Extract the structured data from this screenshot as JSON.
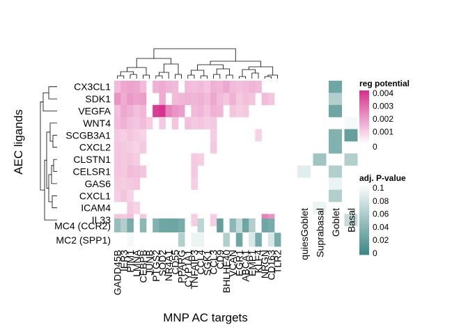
{
  "chart_data": {
    "type": "heatmap",
    "title": "",
    "xlabel": "MNP AC targets",
    "ylabel": "AEC ligands",
    "ligands": [
      "CX3CL1",
      "SDK1",
      "VEGFA",
      "WNT4",
      "SCGB3A1",
      "CXCL2",
      "CLSTN1",
      "CELSR1",
      "GAS6",
      "CXCL1",
      "ICAM4",
      "IL33"
    ],
    "targets": [
      "GADD45B",
      "IER3",
      "PIM1",
      "LMNA",
      "CEBPB",
      "JUNB",
      "PTGS2",
      "SOD2",
      "NR4A1",
      "CD55",
      "PPARG",
      "CYP1A1",
      "TNFAIP3",
      "CCL4",
      "SGK1",
      "CCL3",
      "CD9",
      "BHLHE40",
      "VCAN",
      "EGR1",
      "ABCA1",
      "EMP1",
      "KLF4",
      "NRGN",
      "CD163",
      "TLR2"
    ],
    "regulatory_potential": [
      [
        0.0014,
        0.0018,
        0.0019,
        0.0018,
        0.0014,
        0.0,
        0.0016,
        0.0017,
        0.0015,
        0.0014,
        0.0,
        0.0014,
        0.0013,
        0.0014,
        0.0012,
        0.0016,
        0.0015,
        0.0018,
        0.0014,
        0.0013,
        0.0014,
        0.0015,
        0.0014,
        0.0,
        0.0,
        0.0
      ],
      [
        0.0022,
        0.0017,
        0.0021,
        0.0019,
        0.002,
        0.0,
        0.0,
        0.0017,
        0.0,
        0.0014,
        0.0015,
        0.0016,
        0.0015,
        0.0016,
        0.0014,
        0.0018,
        0.0014,
        0.0012,
        0.0016,
        0.0011,
        0.0013,
        0.0012,
        0.0,
        0.0014,
        0.0012,
        0.0
      ],
      [
        0.0013,
        0.0018,
        0.0016,
        0.0013,
        0.0015,
        0.0,
        0.004,
        0.0042,
        0.0026,
        0.0022,
        0.002,
        0.0,
        0.0014,
        0.0015,
        0.0012,
        0.0016,
        0.0015,
        0.0,
        0.0012,
        0.001,
        0.0011,
        0.0,
        0.0,
        0.0,
        0.0,
        0.0
      ],
      [
        0.0014,
        0.0016,
        0.0013,
        0.0012,
        0.0014,
        0.001,
        0.0,
        0.0011,
        0.0,
        0.0012,
        0.0,
        0.0013,
        0.0011,
        0.0012,
        0.001,
        0.0011,
        0.0,
        0.0,
        0.0,
        0.0,
        0.0,
        0.0,
        0.0,
        0.0,
        0.0,
        0.0
      ],
      [
        0.0011,
        0.001,
        0.0012,
        0.001,
        0.0009,
        0.0,
        0.0,
        0.0,
        0.0,
        0.0,
        0.0,
        0.0,
        0.0,
        0.0,
        0.0,
        0.001,
        0.0,
        0.0,
        0.0,
        0.0,
        0.0,
        0.0,
        0.0009,
        0.0,
        0.0,
        0.0
      ],
      [
        0.0012,
        0.0011,
        0.001,
        0.0009,
        0.0011,
        0.0,
        0.0,
        0.0,
        0.0,
        0.0,
        0.0,
        0.0,
        0.0,
        0.0,
        0.0,
        0.0011,
        0.0,
        0.0,
        0.0,
        0.0,
        0.0,
        0.0,
        0.0,
        0.0,
        0.0,
        0.0
      ],
      [
        0.0012,
        0.0011,
        0.0012,
        0.001,
        0.0,
        0.0,
        0.0,
        0.0,
        0.0,
        0.0,
        0.0,
        0.0,
        0.0011,
        0.001,
        0.0,
        0.0,
        0.0,
        0.0,
        0.0,
        0.0,
        0.0,
        0.0,
        0.0,
        0.0,
        0.0,
        0.0
      ],
      [
        0.0012,
        0.0011,
        0.0014,
        0.0013,
        0.0012,
        0.0,
        0.0,
        0.0,
        0.0,
        0.0,
        0.0,
        0.0,
        0.0011,
        0.0,
        0.0,
        0.0,
        0.0,
        0.0,
        0.0,
        0.0,
        0.0,
        0.0,
        0.0,
        0.0,
        0.0,
        0.0
      ],
      [
        0.0011,
        0.001,
        0.0011,
        0.0012,
        0.0,
        0.0,
        0.0,
        0.0,
        0.0,
        0.0,
        0.0,
        0.0,
        0.001,
        0.0,
        0.0,
        0.0,
        0.0,
        0.0,
        0.0,
        0.0,
        0.0,
        0.0,
        0.0,
        0.0,
        0.0,
        0.0
      ],
      [
        0.001,
        0.0012,
        0.0009,
        0.0,
        0.0,
        0.0,
        0.0,
        0.0,
        0.0,
        0.0,
        0.0,
        0.0,
        0.0,
        0.0,
        0.0,
        0.0,
        0.0,
        0.0,
        0.0,
        0.0,
        0.0,
        0.0,
        0.0,
        0.0,
        0.0,
        0.0
      ],
      [
        0.0,
        0.0,
        0.0011,
        0.0009,
        0.0,
        0.0,
        0.0,
        0.0,
        0.0,
        0.0,
        0.0,
        0.0,
        0.0,
        0.0,
        0.0,
        0.0,
        0.0,
        0.0,
        0.0,
        0.0,
        0.0,
        0.0,
        0.0,
        0.0,
        0.0,
        0.0
      ],
      [
        0.0012,
        0.0011,
        0.0013,
        0.0,
        0.0011,
        0.0,
        0.0,
        0.0,
        0.0,
        0.0,
        0.0,
        0.0,
        0.001,
        0.0,
        0.0,
        0.001,
        0.0,
        0.0,
        0.0,
        0.0,
        0.0,
        0.0,
        0.0,
        0.0026,
        0.0022,
        0.0
      ]
    ],
    "mc_clusters": [
      "MC4 (CCR2)",
      "MC2 (SPP1)"
    ],
    "mc_pvalue": [
      [
        0.045,
        0.06,
        0.03,
        null,
        0.04,
        null,
        0.035,
        0.025,
        0.025,
        0.025,
        0.03,
        null,
        null,
        0.065,
        null,
        null,
        0.02,
        null,
        0.04,
        0.07,
        0.025,
        0.06,
        null,
        0.025,
        0.03,
        null
      ],
      [
        null,
        null,
        0.095,
        null,
        null,
        null,
        null,
        null,
        null,
        null,
        0.06,
        null,
        0.09,
        0.09,
        null,
        null,
        null,
        0.06,
        null,
        0.025,
        null,
        0.08,
        0.03,
        null,
        0.08,
        0.03
      ]
    ],
    "cell_types": [
      "quiesGoblet",
      "Suprabasal",
      "Goblet",
      "Basal"
    ],
    "celltype_pvalue": [
      [
        null,
        null,
        0.025,
        null
      ],
      [
        null,
        null,
        0.06,
        null
      ],
      [
        null,
        null,
        0.025,
        null
      ],
      [
        null,
        null,
        null,
        0.095
      ],
      [
        null,
        null,
        0.035,
        0.02
      ],
      [
        null,
        null,
        0.035,
        null
      ],
      [
        null,
        0.05,
        null,
        0.06
      ],
      [
        0.085,
        null,
        0.06,
        null
      ],
      [
        null,
        null,
        0.09,
        null
      ],
      [
        null,
        null,
        0.06,
        null
      ],
      [
        null,
        0.09,
        null,
        null
      ],
      [
        null,
        null,
        null,
        0.07
      ]
    ],
    "legend_reg": {
      "title": "reg potential",
      "ticks": [
        "0.004",
        "0.003",
        "0.002",
        "0.001",
        "0"
      ],
      "min": 0,
      "max": 0.0042
    },
    "legend_p": {
      "title": "adj. P-value",
      "ticks": [
        "0.1",
        "0.08",
        "0.06",
        "0.04",
        "0.02",
        "0"
      ],
      "min": 0,
      "max": 0.1
    },
    "colors": {
      "reg_low": "#ffffff",
      "reg_high": "#d6338e",
      "p_low": "#3e8885",
      "p_high": "#ffffff",
      "line": "#000000"
    }
  }
}
